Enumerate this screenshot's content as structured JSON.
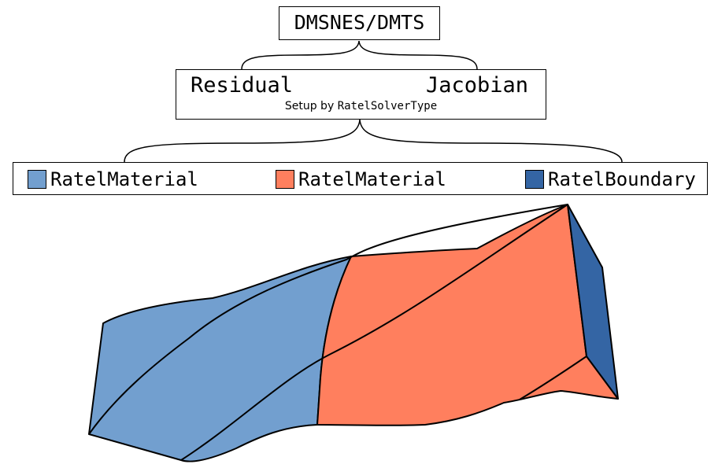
{
  "top": {
    "label": "DMSNES/DMTS"
  },
  "middle": {
    "left_label": "Residual",
    "right_label": "Jacobian",
    "setup_prefix": "Setup by ",
    "setup_code": "RatelSolverType"
  },
  "legend": {
    "items": [
      {
        "label": "RatelMaterial",
        "color": "#729fcf"
      },
      {
        "label": "RatelMaterial",
        "color": "#ff7f5e"
      },
      {
        "label": "RatelBoundary",
        "color": "#3465a4"
      }
    ]
  },
  "colors": {
    "stroke": "#000000"
  }
}
